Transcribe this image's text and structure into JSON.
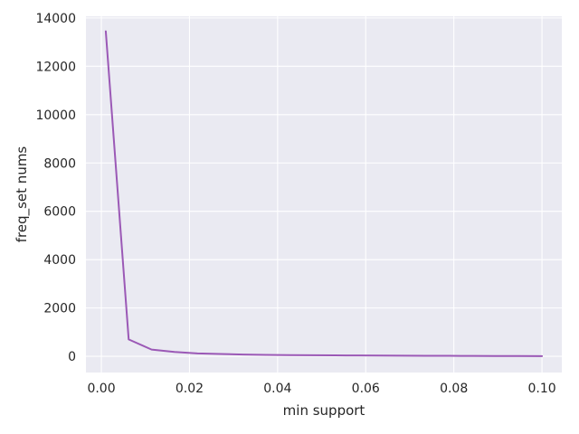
{
  "chart_data": {
    "type": "line",
    "title": "",
    "xlabel": "min support",
    "ylabel": "freq_set nums",
    "xlim": [
      -0.0035,
      0.1045
    ],
    "ylim": [
      -670,
      14070
    ],
    "xticks": [
      0.0,
      0.02,
      0.04,
      0.06,
      0.08,
      0.1
    ],
    "xtick_labels": [
      "0.00",
      "0.02",
      "0.04",
      "0.06",
      "0.08",
      "0.10"
    ],
    "yticks": [
      0,
      2000,
      4000,
      6000,
      8000,
      10000,
      12000,
      14000
    ],
    "ytick_labels": [
      "0",
      "2000",
      "4000",
      "6000",
      "8000",
      "10000",
      "12000",
      "14000"
    ],
    "grid": true,
    "background": "#eaeaf2",
    "grid_color": "#ffffff",
    "series": [
      {
        "color": "#9b59b6",
        "x": [
          0.001,
          0.0062,
          0.0114,
          0.0166,
          0.0218,
          0.027,
          0.0322,
          0.0374,
          0.0426,
          0.0478,
          0.053,
          0.0582,
          0.0634,
          0.0686,
          0.0738,
          0.079,
          0.0842,
          0.0894,
          0.0946,
          0.1
        ],
        "y": [
          13450,
          700,
          280,
          180,
          120,
          95,
          75,
          60,
          50,
          45,
          40,
          35,
          30,
          27,
          24,
          21,
          18,
          15,
          12,
          10
        ]
      }
    ]
  }
}
